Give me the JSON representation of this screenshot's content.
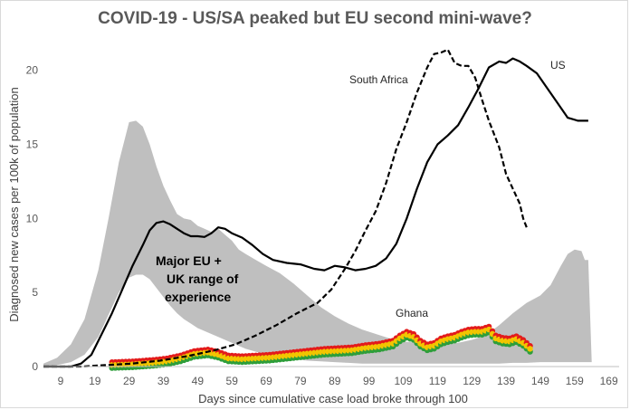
{
  "chart_data": {
    "type": "line",
    "title": "COVID-19 - US/SA peaked but EU second mini-wave?",
    "xlabel": "Days since cumulative case load broke through 100",
    "ylabel": "Diagnosed new cases per 100k of population",
    "xlim": [
      4,
      172
    ],
    "ylim": [
      0,
      22
    ],
    "x_ticks": [
      9,
      19,
      29,
      39,
      49,
      59,
      69,
      79,
      89,
      99,
      109,
      119,
      129,
      139,
      149,
      159,
      169
    ],
    "y_ticks": [
      0,
      5,
      10,
      15,
      20
    ],
    "grid": false,
    "colors": {
      "band": "#bfbfbf",
      "us": "#000000",
      "south_africa": "#000000",
      "ghana_red": "#e31b1b",
      "ghana_gold": "#f2c500",
      "ghana_green": "#2e9e3a"
    },
    "annotations": {
      "us": "US",
      "south_africa": "South Africa",
      "ghana": "Ghana",
      "eu_band_line1": "Major EU +",
      "eu_band_line2": "UK range of",
      "eu_band_line3": "experience"
    },
    "band_range": {
      "name": "Major EU + UK range of experience",
      "upper": [
        [
          4,
          0.2
        ],
        [
          8,
          0.6
        ],
        [
          12,
          1.5
        ],
        [
          16,
          3.2
        ],
        [
          20,
          6.5
        ],
        [
          23,
          10
        ],
        [
          26,
          13.8
        ],
        [
          29,
          16.5
        ],
        [
          31,
          16.6
        ],
        [
          33,
          16.2
        ],
        [
          35,
          15
        ],
        [
          37,
          13.5
        ],
        [
          39,
          12.2
        ],
        [
          41,
          11.2
        ],
        [
          43,
          10.3
        ],
        [
          45,
          10
        ],
        [
          47,
          9.9
        ],
        [
          49,
          9.5
        ],
        [
          51,
          9.3
        ],
        [
          53,
          9.1
        ],
        [
          55,
          9.3
        ],
        [
          57,
          8.9
        ],
        [
          59,
          8.5
        ],
        [
          61,
          7.9
        ],
        [
          63,
          7.6
        ],
        [
          66,
          7.2
        ],
        [
          69,
          6.8
        ],
        [
          73,
          6.3
        ],
        [
          77,
          5.6
        ],
        [
          81,
          4.8
        ],
        [
          85,
          4
        ],
        [
          89,
          3.4
        ],
        [
          93,
          2.9
        ],
        [
          97,
          2.5
        ],
        [
          101,
          2.2
        ],
        [
          105,
          1.9
        ],
        [
          109,
          1.7
        ],
        [
          113,
          1.6
        ],
        [
          117,
          1.5
        ],
        [
          121,
          1.5
        ],
        [
          125,
          1.6
        ],
        [
          129,
          1.8
        ],
        [
          133,
          2.1
        ],
        [
          137,
          2.8
        ],
        [
          141,
          3.6
        ],
        [
          145,
          4.3
        ],
        [
          149,
          4.8
        ],
        [
          152,
          5.5
        ],
        [
          155,
          6.8
        ],
        [
          157,
          7.6
        ],
        [
          159,
          7.9
        ],
        [
          161,
          7.8
        ],
        [
          162,
          7.2
        ],
        [
          163,
          7.2
        ],
        [
          164,
          0.3
        ]
      ],
      "lower": [
        [
          4,
          0
        ],
        [
          8,
          0.1
        ],
        [
          12,
          0.3
        ],
        [
          16,
          0.8
        ],
        [
          20,
          2
        ],
        [
          23,
          3.5
        ],
        [
          26,
          5
        ],
        [
          29,
          6
        ],
        [
          31,
          6.2
        ],
        [
          33,
          6.2
        ],
        [
          35,
          5.9
        ],
        [
          37,
          5.3
        ],
        [
          39,
          4.7
        ],
        [
          41,
          4.1
        ],
        [
          43,
          3.6
        ],
        [
          45,
          3.2
        ],
        [
          47,
          2.9
        ],
        [
          49,
          2.6
        ],
        [
          51,
          2.4
        ],
        [
          53,
          2.2
        ],
        [
          55,
          2
        ],
        [
          57,
          1.8
        ],
        [
          59,
          1.6
        ],
        [
          61,
          1.4
        ],
        [
          63,
          1.2
        ],
        [
          66,
          1
        ],
        [
          69,
          0.8
        ],
        [
          73,
          0.6
        ],
        [
          77,
          0.5
        ],
        [
          81,
          0.4
        ],
        [
          85,
          0.35
        ],
        [
          89,
          0.3
        ],
        [
          93,
          0.25
        ],
        [
          97,
          0.2
        ],
        [
          101,
          0.2
        ],
        [
          105,
          0.2
        ],
        [
          109,
          0.2
        ],
        [
          113,
          0.2
        ],
        [
          117,
          0.2
        ],
        [
          121,
          0.2
        ],
        [
          125,
          0.2
        ],
        [
          129,
          0.2
        ],
        [
          133,
          0.2
        ],
        [
          137,
          0.2
        ],
        [
          141,
          0.25
        ],
        [
          145,
          0.25
        ],
        [
          149,
          0.3
        ],
        [
          153,
          0.3
        ],
        [
          157,
          0.3
        ],
        [
          161,
          0.3
        ],
        [
          164,
          0.3
        ]
      ]
    },
    "series": [
      {
        "name": "US",
        "style": "solid",
        "points": [
          [
            4,
            0
          ],
          [
            12,
            0
          ],
          [
            15,
            0.2
          ],
          [
            18,
            0.8
          ],
          [
            21,
            2.2
          ],
          [
            24,
            3.6
          ],
          [
            27,
            5.2
          ],
          [
            30,
            6.8
          ],
          [
            33,
            8.2
          ],
          [
            35,
            9.2
          ],
          [
            37,
            9.7
          ],
          [
            39,
            9.8
          ],
          [
            41,
            9.6
          ],
          [
            43,
            9.3
          ],
          [
            45,
            9
          ],
          [
            47,
            8.8
          ],
          [
            49,
            8.8
          ],
          [
            51,
            8.75
          ],
          [
            53,
            9
          ],
          [
            55,
            9.4
          ],
          [
            57,
            9.3
          ],
          [
            59,
            9
          ],
          [
            62,
            8.7
          ],
          [
            65,
            8.2
          ],
          [
            68,
            7.6
          ],
          [
            71,
            7.2
          ],
          [
            75,
            7
          ],
          [
            79,
            6.9
          ],
          [
            83,
            6.6
          ],
          [
            86,
            6.5
          ],
          [
            89,
            6.8
          ],
          [
            92,
            6.7
          ],
          [
            95,
            6.5
          ],
          [
            98,
            6.6
          ],
          [
            101,
            6.8
          ],
          [
            104,
            7.3
          ],
          [
            107,
            8.3
          ],
          [
            110,
            10
          ],
          [
            113,
            12
          ],
          [
            116,
            13.8
          ],
          [
            119,
            15
          ],
          [
            122,
            15.6
          ],
          [
            125,
            16.3
          ],
          [
            128,
            17.5
          ],
          [
            131,
            18.8
          ],
          [
            134,
            20.2
          ],
          [
            137,
            20.6
          ],
          [
            139,
            20.5
          ],
          [
            141,
            20.8
          ],
          [
            143,
            20.6
          ],
          [
            145,
            20.3
          ],
          [
            148,
            19.8
          ],
          [
            151,
            18.8
          ],
          [
            154,
            17.8
          ],
          [
            157,
            16.8
          ],
          [
            160,
            16.6
          ],
          [
            163,
            16.6
          ]
        ]
      },
      {
        "name": "South Africa",
        "style": "dashed",
        "points": [
          [
            4,
            0
          ],
          [
            15,
            0
          ],
          [
            22,
            0.1
          ],
          [
            30,
            0.2
          ],
          [
            38,
            0.4
          ],
          [
            46,
            0.7
          ],
          [
            54,
            1.1
          ],
          [
            60,
            1.5
          ],
          [
            66,
            2.1
          ],
          [
            72,
            2.8
          ],
          [
            78,
            3.6
          ],
          [
            84,
            4.3
          ],
          [
            88,
            5.2
          ],
          [
            92,
            6.6
          ],
          [
            95,
            7.8
          ],
          [
            98,
            9.2
          ],
          [
            101,
            10.5
          ],
          [
            104,
            12.4
          ],
          [
            107,
            14.7
          ],
          [
            110,
            16.5
          ],
          [
            113,
            18.5
          ],
          [
            116,
            20.2
          ],
          [
            118,
            21.1
          ],
          [
            120,
            21.2
          ],
          [
            122,
            21.4
          ],
          [
            124,
            20.5
          ],
          [
            126,
            20.3
          ],
          [
            128,
            20.3
          ],
          [
            130,
            19.5
          ],
          [
            132,
            18
          ],
          [
            134,
            16.6
          ],
          [
            137,
            14.8
          ],
          [
            139,
            13
          ],
          [
            141,
            12
          ],
          [
            143,
            11
          ],
          [
            144,
            10
          ],
          [
            145,
            9.4
          ]
        ]
      },
      {
        "name": "Ghana",
        "style": "dotted-flag",
        "points": [
          [
            24,
            0.1
          ],
          [
            30,
            0.15
          ],
          [
            36,
            0.25
          ],
          [
            40,
            0.35
          ],
          [
            44,
            0.55
          ],
          [
            48,
            0.85
          ],
          [
            52,
            0.95
          ],
          [
            55,
            0.8
          ],
          [
            58,
            0.55
          ],
          [
            62,
            0.5
          ],
          [
            66,
            0.55
          ],
          [
            70,
            0.6
          ],
          [
            74,
            0.7
          ],
          [
            78,
            0.8
          ],
          [
            82,
            0.9
          ],
          [
            86,
            1
          ],
          [
            90,
            1.05
          ],
          [
            94,
            1.1
          ],
          [
            98,
            1.25
          ],
          [
            102,
            1.35
          ],
          [
            106,
            1.55
          ],
          [
            108,
            1.9
          ],
          [
            110,
            2.15
          ],
          [
            112,
            2
          ],
          [
            114,
            1.55
          ],
          [
            116,
            1.3
          ],
          [
            118,
            1.4
          ],
          [
            120,
            1.7
          ],
          [
            122,
            1.85
          ],
          [
            124,
            1.95
          ],
          [
            126,
            2.15
          ],
          [
            128,
            2.3
          ],
          [
            130,
            2.35
          ],
          [
            132,
            2.35
          ],
          [
            134,
            2.5
          ],
          [
            136,
            1.9
          ],
          [
            138,
            1.75
          ],
          [
            140,
            1.7
          ],
          [
            142,
            1.85
          ],
          [
            144,
            1.6
          ],
          [
            146,
            1.2
          ]
        ]
      }
    ]
  }
}
